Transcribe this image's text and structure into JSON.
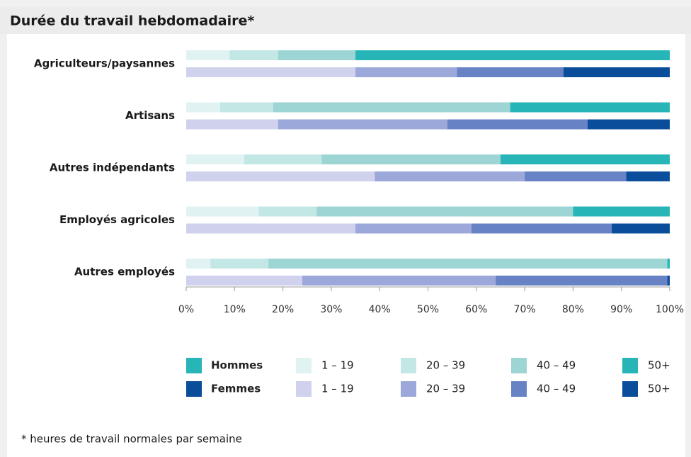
{
  "chart_data": {
    "type": "stacked-bar-horizontal",
    "title": "Durée du travail hebdomadaire*",
    "footnote": "* heures de travail normales par semaine",
    "categories": [
      "Agriculteurs/paysannes",
      "Artisans",
      "Autres indépendants",
      "Employés agricoles",
      "Autres employés"
    ],
    "groups": [
      {
        "name": "Hommes",
        "color": "#27b5b8",
        "series": [
          {
            "name": "1 – 19",
            "color": "#e0f3f2",
            "values": [
              9,
              7,
              12,
              15,
              5
            ]
          },
          {
            "name": "20 – 39",
            "color": "#c2e7e5",
            "values": [
              10,
              11,
              16,
              12,
              12
            ]
          },
          {
            "name": "40 – 49",
            "color": "#9dd4d4",
            "values": [
              16,
              49,
              37,
              53,
              82.5
            ]
          },
          {
            "name": "50+",
            "color": "#27b5b8",
            "values": [
              65,
              33,
              35,
              20,
              0.5
            ]
          }
        ]
      },
      {
        "name": "Femmes",
        "color": "#0a4e9b",
        "series": [
          {
            "name": "1 – 19",
            "color": "#cfd1ed",
            "values": [
              35,
              19,
              39,
              35,
              24
            ]
          },
          {
            "name": "20 – 39",
            "color": "#9ba8d9",
            "values": [
              21,
              35,
              31,
              24,
              40
            ]
          },
          {
            "name": "40 – 49",
            "color": "#6883c5",
            "values": [
              22,
              29,
              21,
              29,
              35.5
            ]
          },
          {
            "name": "50+",
            "color": "#0a4e9b",
            "values": [
              22,
              17,
              9,
              12,
              0.5
            ]
          }
        ]
      }
    ],
    "xlim": [
      0,
      100
    ],
    "xticks": [
      {
        "value": 0,
        "label": "0%"
      },
      {
        "value": 10,
        "label": "10%"
      },
      {
        "value": 20,
        "label": "20%"
      },
      {
        "value": 30,
        "label": "30%"
      },
      {
        "value": 40,
        "label": "40%"
      },
      {
        "value": 50,
        "label": "50%"
      },
      {
        "value": 60,
        "label": "60%"
      },
      {
        "value": 70,
        "label": "70%"
      },
      {
        "value": 80,
        "label": "80%"
      },
      {
        "value": 90,
        "label": "90%"
      },
      {
        "value": 100,
        "label": "100%"
      }
    ]
  }
}
